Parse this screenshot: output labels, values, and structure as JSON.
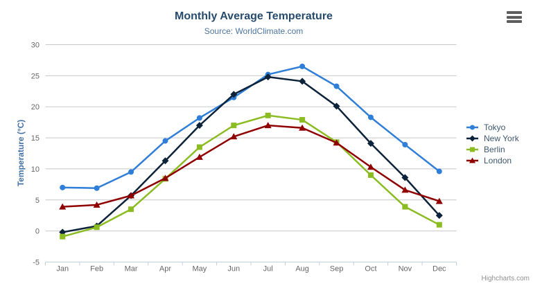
{
  "chart": {
    "credit": "Highcharts.com",
    "context_menu_icon": "hamburger-icon"
  },
  "theme": {
    "title_color": "#274b6d",
    "subtitle_color": "#4d759e",
    "axis_label_color": "#666666",
    "yaxis_title_color": "#4572a7",
    "grid_color": "#c8c8c8",
    "axis_line_color": "#c0d0e0",
    "legend_text_color": "#3E576F",
    "credit_color": "#909090"
  },
  "chart_data": {
    "type": "line",
    "title": "Monthly Average Temperature",
    "subtitle": "Source: WorldClimate.com",
    "xlabel": "",
    "ylabel": "Temperature (°C)",
    "ylim": [
      -5,
      30
    ],
    "ytick_interval": 5,
    "grid": true,
    "legend_position": "right",
    "categories": [
      "Jan",
      "Feb",
      "Mar",
      "Apr",
      "May",
      "Jun",
      "Jul",
      "Aug",
      "Sep",
      "Oct",
      "Nov",
      "Dec"
    ],
    "series": [
      {
        "name": "Tokyo",
        "color": "#2f7ed8",
        "marker": "circle",
        "values": [
          7.0,
          6.9,
          9.5,
          14.5,
          18.2,
          21.5,
          25.2,
          26.5,
          23.3,
          18.3,
          13.9,
          9.6
        ]
      },
      {
        "name": "New York",
        "color": "#0d233a",
        "marker": "diamond",
        "values": [
          -0.2,
          0.8,
          5.7,
          11.3,
          17.0,
          22.0,
          24.8,
          24.1,
          20.1,
          14.1,
          8.6,
          2.5
        ]
      },
      {
        "name": "Berlin",
        "color": "#8bbc21",
        "marker": "square",
        "values": [
          -0.9,
          0.6,
          3.5,
          8.4,
          13.5,
          17.0,
          18.6,
          17.9,
          14.3,
          9.0,
          3.9,
          1.0
        ]
      },
      {
        "name": "London",
        "color": "#910000",
        "marker": "triangle-up",
        "values": [
          3.9,
          4.2,
          5.7,
          8.5,
          11.9,
          15.2,
          17.0,
          16.6,
          14.2,
          10.3,
          6.6,
          4.8
        ]
      }
    ]
  }
}
